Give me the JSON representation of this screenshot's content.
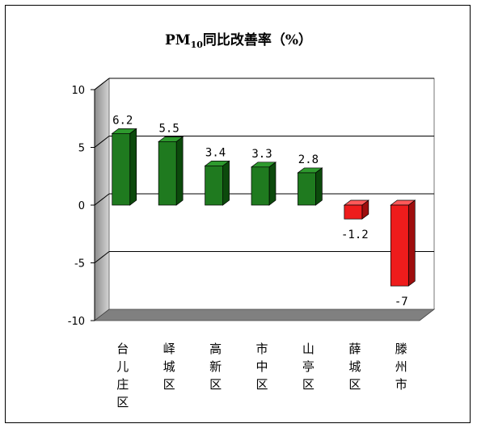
{
  "chart_data": {
    "type": "bar",
    "title": {
      "prefix": "PM",
      "subscript": "10",
      "suffix": "同比改善率（%）"
    },
    "categories": [
      "台儿庄区",
      "峄城区",
      "高新区",
      "市中区",
      "山亭区",
      "薛城区",
      "滕州市"
    ],
    "values": [
      6.2,
      5.5,
      3.4,
      3.3,
      2.8,
      -1.2,
      -7
    ],
    "data_labels": [
      "6.2",
      "5.5",
      "3.4",
      "3.3",
      "2.8",
      "-1.2",
      "-7"
    ],
    "y_ticks": [
      "10",
      "5",
      "0",
      "-5",
      "-10"
    ],
    "ylim": [
      -10,
      10
    ],
    "grid": true,
    "legend": "none",
    "colors": {
      "positive": "#1f7a1f",
      "negative": "#ee1c1c",
      "wall": "#c0c0c0",
      "floor": "#808080"
    }
  }
}
